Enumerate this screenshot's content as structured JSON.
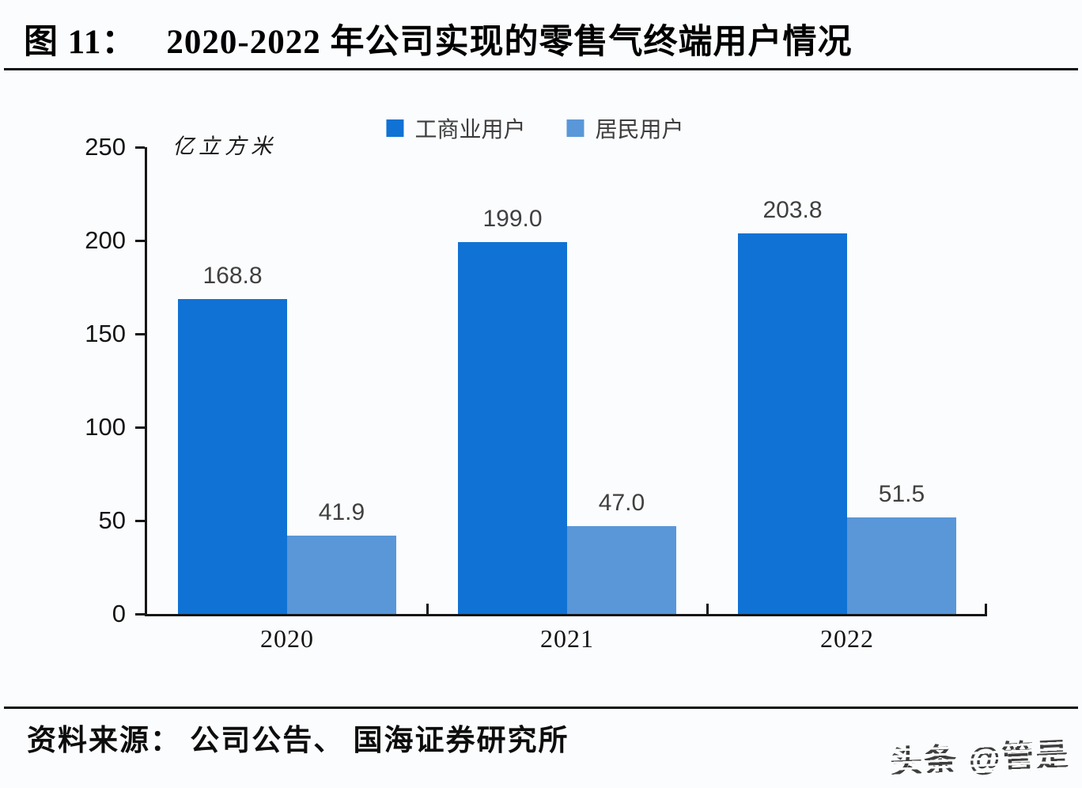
{
  "header": {
    "figure_label": "图 11：",
    "title": "2020-2022 年公司实现的零售气终端用户情况"
  },
  "chart_data": {
    "type": "bar",
    "title": "2020-2022 年公司实现的零售气终端用户情况",
    "unit_label": "亿立方米",
    "categories": [
      "2020",
      "2021",
      "2022"
    ],
    "series": [
      {
        "name": "工商业用户",
        "color": "#1072d4",
        "values": [
          168.8,
          199.0,
          203.8
        ],
        "labels": [
          "168.8",
          "199.0",
          "203.8"
        ]
      },
      {
        "name": "居民用户",
        "color": "#5997d9",
        "values": [
          41.9,
          47.0,
          51.5
        ],
        "labels": [
          "41.9",
          "47.0",
          "51.5"
        ]
      }
    ],
    "ylim": [
      0,
      250
    ],
    "yticks": [
      0,
      50,
      100,
      150,
      200,
      250
    ],
    "grid": false,
    "legend_position": "top",
    "axis_color": "#161616",
    "label_text_color": "#404040"
  },
  "footer": {
    "source": "资料来源： 公司公告、 国海证券研究所",
    "watermark": "头条 @管是"
  }
}
